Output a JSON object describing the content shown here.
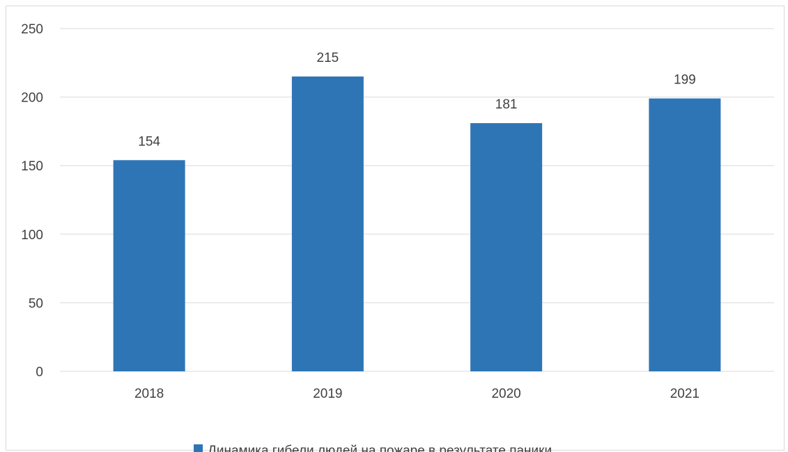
{
  "chart_data": {
    "type": "bar",
    "categories": [
      "2018",
      "2019",
      "2020",
      "2021"
    ],
    "series": [
      {
        "name": "Динамика гибели людей на пожаре в результате паники",
        "values": [
          154,
          215,
          181,
          199
        ],
        "color": "#2e75b6"
      }
    ],
    "title": "",
    "xlabel": "",
    "ylabel": "",
    "ylim": [
      0,
      250
    ],
    "yticks": [
      0,
      50,
      100,
      150,
      200,
      250
    ],
    "grid": true,
    "data_labels": true,
    "legend": "bottom"
  }
}
